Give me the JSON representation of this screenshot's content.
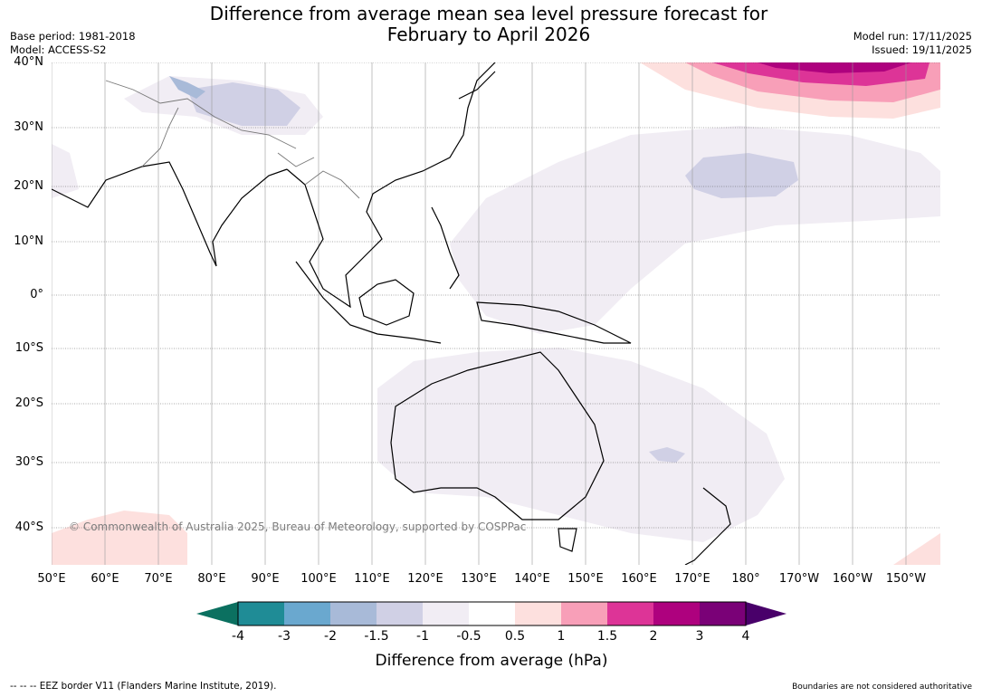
{
  "title_line1": "Difference from average mean sea level pressure forecast for",
  "title_line2": "February to April 2026",
  "meta_left": {
    "base_period": "Base period: 1981-2018",
    "model": "Model: ACCESS-S2"
  },
  "meta_right": {
    "model_run": "Model run: 17/11/2025",
    "issued": "Issued: 19/11/2025"
  },
  "lat_labels": [
    "40°N",
    "30°N",
    "20°N",
    "10°N",
    "0°",
    "10°S",
    "20°S",
    "30°S",
    "40°S"
  ],
  "lon_labels": [
    "50°E",
    "60°E",
    "70°E",
    "80°E",
    "90°E",
    "100°E",
    "110°E",
    "120°E",
    "130°E",
    "140°E",
    "150°E",
    "160°E",
    "170°E",
    "180°",
    "170°W",
    "160°W",
    "150°W"
  ],
  "copyright": "© Commonwealth of Australia 2025, Bureau of Meteorology, supported by COSPPac",
  "colorbar": {
    "title": "Difference from average (hPa)",
    "tick_labels": [
      "-4",
      "-3",
      "-2",
      "-1.5",
      "-1",
      "-0.5",
      "0.5",
      "1",
      "1.5",
      "2",
      "3",
      "4"
    ],
    "colors": [
      "#1f8c96",
      "#6aa8cf",
      "#a8bad8",
      "#d0d0e5",
      "#f1edf4",
      "#ffffff",
      "#fde0de",
      "#f89fb8",
      "#dd3497",
      "#ae017e",
      "#7a0177"
    ],
    "under_color": "#0b7060",
    "over_color": "#49006a"
  },
  "footer_left": "-- -- -- EEZ border V11 (Flanders Marine Institute, 2019).",
  "footer_right": "Boundaries are not considered authoritative"
}
